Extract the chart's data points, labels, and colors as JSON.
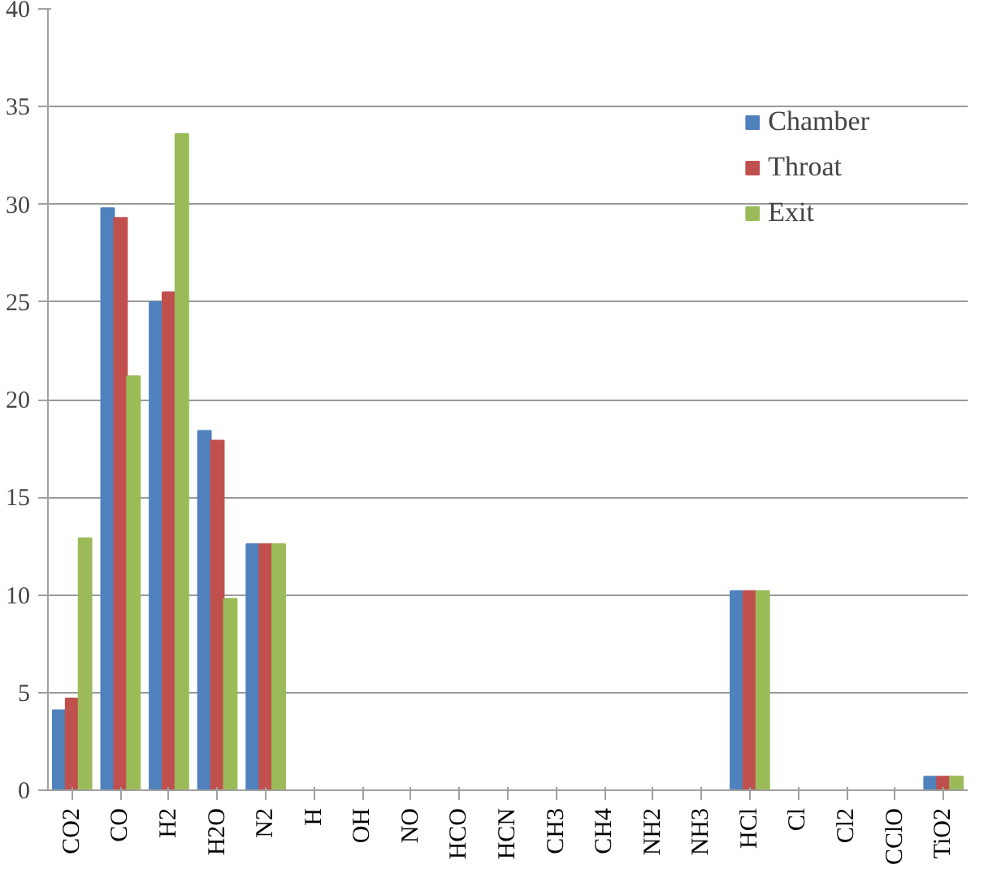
{
  "chart_data": {
    "type": "bar",
    "categories": [
      "CO2",
      "CO",
      "H2",
      "H2O",
      "N2",
      "H",
      "OH",
      "NO",
      "HCO",
      "HCN",
      "CH3",
      "CH4",
      "NH2",
      "NH3",
      "HCl",
      "Cl",
      "Cl2",
      "CClO",
      "TiO2"
    ],
    "series": [
      {
        "name": "Chamber",
        "color": "#4f81bd",
        "values": [
          4.1,
          29.8,
          25.0,
          18.4,
          12.6,
          0,
          0,
          0,
          0,
          0,
          0,
          0,
          0,
          0,
          10.2,
          0,
          0,
          0,
          0.7
        ]
      },
      {
        "name": "Throat",
        "color": "#c0504d",
        "values": [
          4.7,
          29.3,
          25.5,
          17.9,
          12.6,
          0,
          0,
          0,
          0,
          0,
          0,
          0,
          0,
          0,
          10.2,
          0,
          0,
          0,
          0.7
        ]
      },
      {
        "name": "Exit",
        "color": "#9bbb59",
        "values": [
          12.9,
          21.2,
          33.6,
          9.8,
          12.6,
          0,
          0,
          0,
          0,
          0,
          0,
          0,
          0,
          0,
          10.2,
          0,
          0,
          0,
          0.7
        ]
      }
    ],
    "ylim": [
      0,
      40
    ],
    "yticks": [
      0,
      5,
      10,
      15,
      20,
      25,
      30,
      35,
      40
    ],
    "grid": "y",
    "legend": "top right"
  }
}
